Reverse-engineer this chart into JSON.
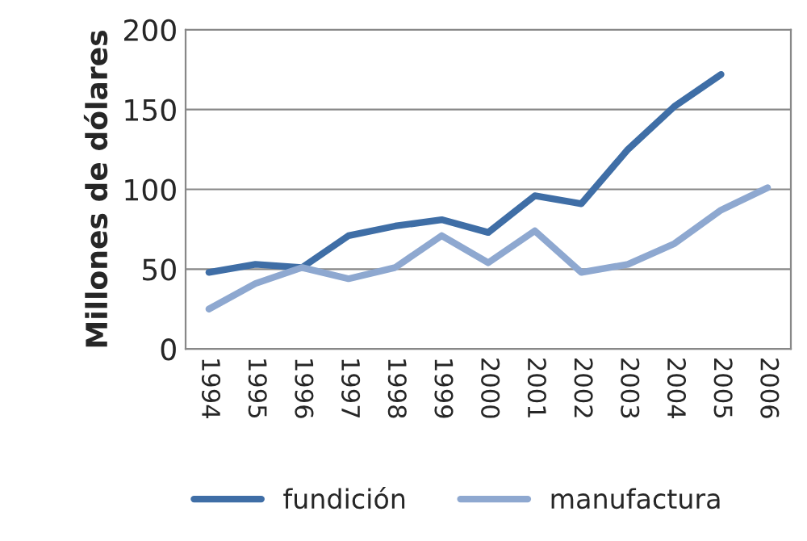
{
  "chart_data": {
    "type": "line",
    "ylabel": "Millones de dólares",
    "categories": [
      "1994",
      "1995",
      "1996",
      "1997",
      "1998",
      "1999",
      "2000",
      "2001",
      "2002",
      "2003",
      "2004",
      "2005",
      "2006"
    ],
    "series": [
      {
        "name": "fundición",
        "color": "#3f6ea6",
        "values": [
          48,
          53,
          51,
          71,
          77,
          81,
          73,
          96,
          91,
          125,
          152,
          172,
          null
        ]
      },
      {
        "name": "manufactura",
        "color": "#8ea8d0",
        "values": [
          25,
          41,
          51,
          44,
          51,
          71,
          54,
          74,
          48,
          53,
          66,
          87,
          101
        ]
      }
    ],
    "ylim": [
      0,
      200
    ],
    "yticks": [
      0,
      50,
      100,
      150,
      200
    ],
    "grid": "y",
    "legend": "bottom",
    "marker": "none",
    "line_style": "solid"
  }
}
